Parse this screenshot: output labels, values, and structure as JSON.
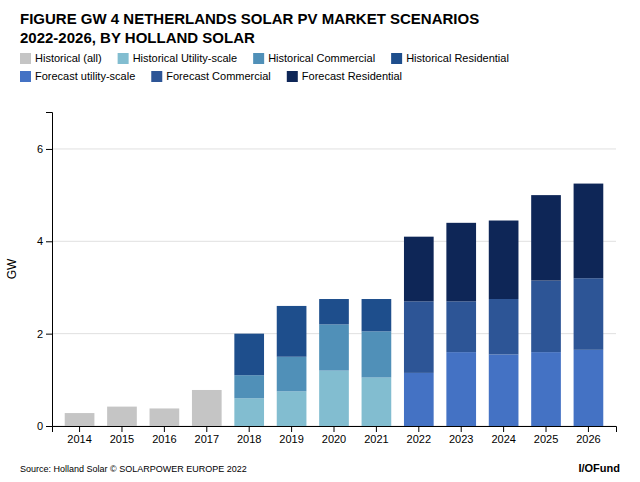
{
  "chart_data": {
    "type": "bar",
    "title": "FIGURE GW 4 NETHERLANDS SOLAR PV MARKET SCENARIOS\n2022-2026, BY HOLLAND SOLAR",
    "ylabel": "GW",
    "annotations": [
      "Source: Holland Solar    © SOLARPOWER EUROPE 2022",
      "I/OFund"
    ],
    "categories": [
      "2014",
      "2015",
      "2016",
      "2017",
      "2018",
      "2019",
      "2020",
      "2021",
      "2022",
      "2023",
      "2024",
      "2025",
      "2026"
    ],
    "series": [
      {
        "name": "Historical (all)",
        "color": "#c5c5c5",
        "values": [
          0.28,
          0.42,
          0.38,
          0.78,
          0,
          0,
          0,
          0,
          0,
          0,
          0,
          0,
          0
        ]
      },
      {
        "name": "Historical Utility-scale",
        "color": "#82bdd0",
        "values": [
          0,
          0,
          0,
          0,
          0.6,
          0.75,
          1.2,
          1.05,
          0,
          0,
          0,
          0,
          0
        ]
      },
      {
        "name": "Historical Commercial",
        "color": "#5090b8",
        "values": [
          0,
          0,
          0,
          0,
          0.5,
          0.75,
          1.0,
          1.0,
          0,
          0,
          0,
          0,
          0
        ]
      },
      {
        "name": "Historical Residential",
        "color": "#1e4e8c",
        "values": [
          0,
          0,
          0,
          0,
          0.9,
          1.1,
          0.55,
          0.7,
          0,
          0,
          0,
          0,
          0
        ]
      },
      {
        "name": "Forecast utility-scale",
        "color": "#4472c4",
        "values": [
          0,
          0,
          0,
          0,
          0,
          0,
          0,
          0,
          1.15,
          1.6,
          1.55,
          1.6,
          1.65
        ]
      },
      {
        "name": "Forecast Commercial",
        "color": "#2d5596",
        "values": [
          0,
          0,
          0,
          0,
          0,
          0,
          0,
          0,
          1.55,
          1.1,
          1.2,
          1.55,
          1.55
        ]
      },
      {
        "name": "Forecast Residential",
        "color": "#0e2657",
        "values": [
          0,
          0,
          0,
          0,
          0,
          0,
          0,
          0,
          1.4,
          1.7,
          1.7,
          1.85,
          2.05
        ]
      }
    ],
    "stacked": true,
    "ylim": [
      0,
      6.8
    ],
    "yticks": [
      0,
      2,
      4,
      6
    ],
    "grid": true,
    "legend": "top"
  }
}
